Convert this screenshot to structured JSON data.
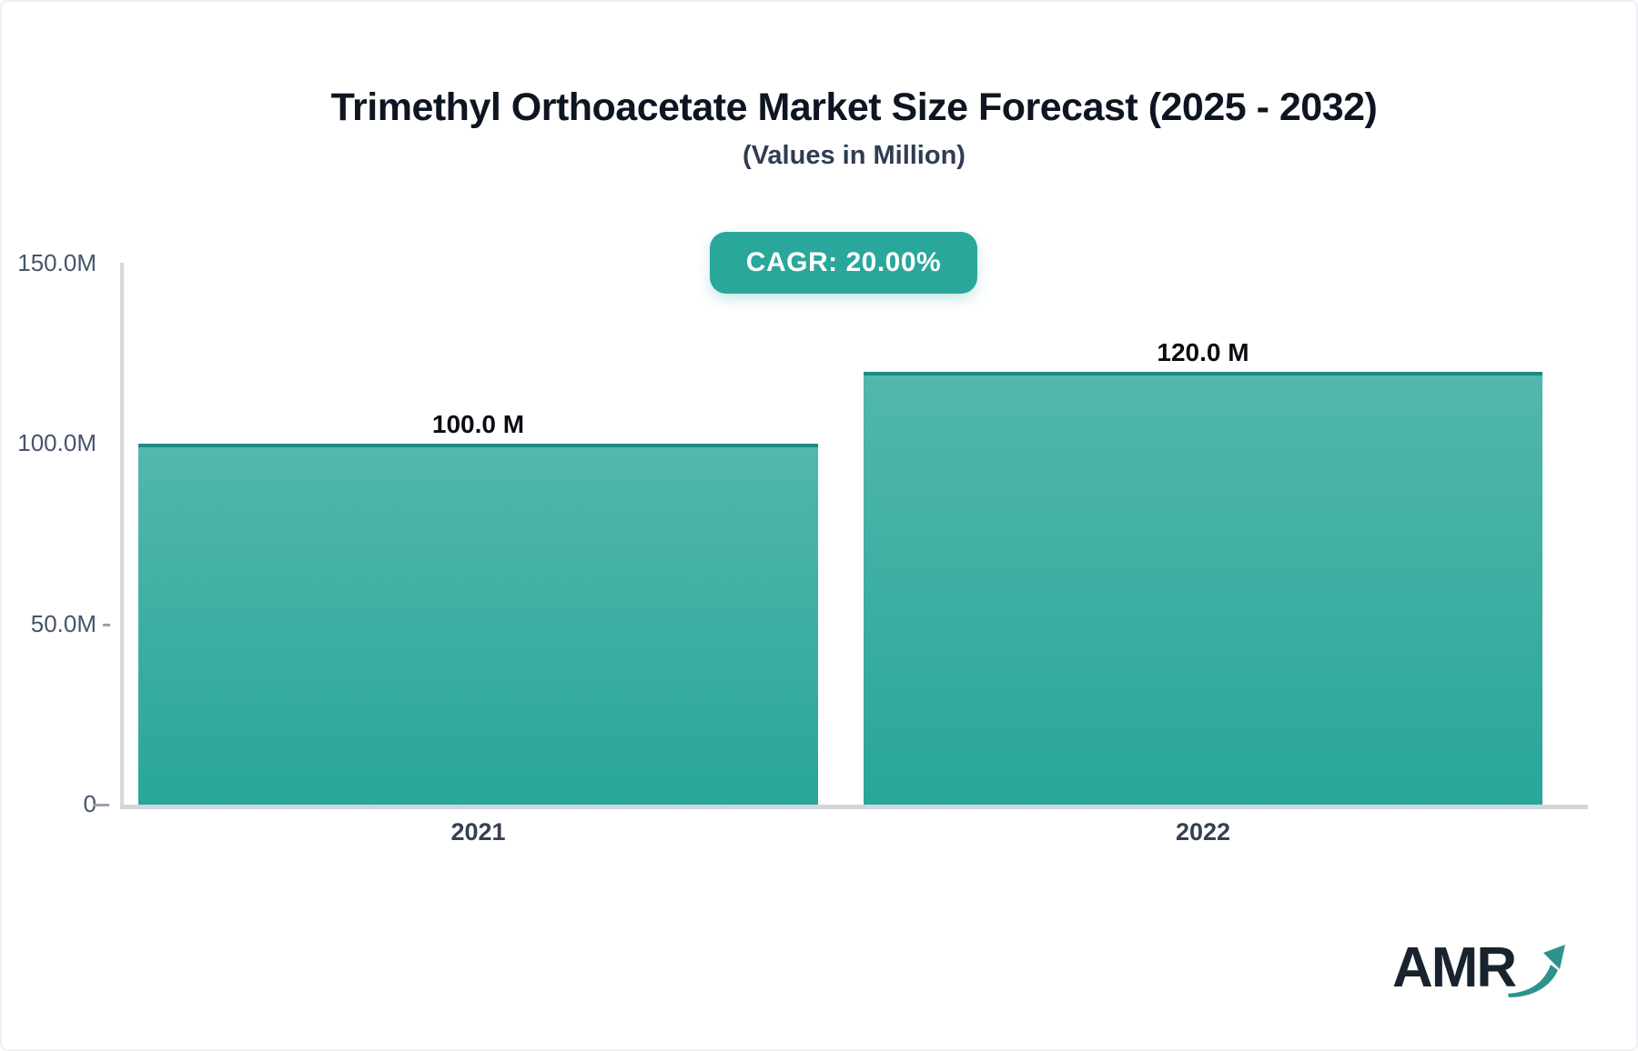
{
  "page": {
    "title": "Trimethyl Orthoacetate Market Size Forecast (2025 - 2032)",
    "subtitle": "(Values in Million)",
    "cagr_label": "CAGR: 20.00%",
    "logo_text": "AMR"
  },
  "colors": {
    "badge_bg": "#2aa79b",
    "bar_gradient_top": "#52b7ac",
    "bar_gradient_bottom": "#29a69a",
    "bar_top_border": "#1c8b81",
    "axis_line": "#d5d8de",
    "baseline": "#d2d5db",
    "title_text": "#0e1522",
    "subtitle_text": "#2f3c51",
    "tick_text": "#46556c",
    "category_text": "#36404f",
    "value_text": "#0a0d12",
    "logo_dark": "#19232d",
    "logo_teal": "#2b938c"
  },
  "chart_data": {
    "type": "bar",
    "title": "Trimethyl Orthoacetate Market Size Forecast (2025 - 2032)",
    "subtitle": "(Values in Million)",
    "unit": "Million",
    "cagr": "20.00%",
    "categories": [
      "2021",
      "2022"
    ],
    "values": [
      100.0,
      120.0
    ],
    "value_labels": [
      "100.0 M",
      "120.0 M"
    ],
    "ylim": [
      0,
      150
    ],
    "yticks": [
      {
        "value": 150,
        "label": "150.0M",
        "tick_mark": false
      },
      {
        "value": 100,
        "label": "100.0M",
        "tick_mark": false
      },
      {
        "value": 50,
        "label": "50.0M",
        "tick_mark": true
      },
      {
        "value": 0,
        "label": "0",
        "tick_mark": true
      }
    ],
    "grid": false,
    "legend": false
  }
}
